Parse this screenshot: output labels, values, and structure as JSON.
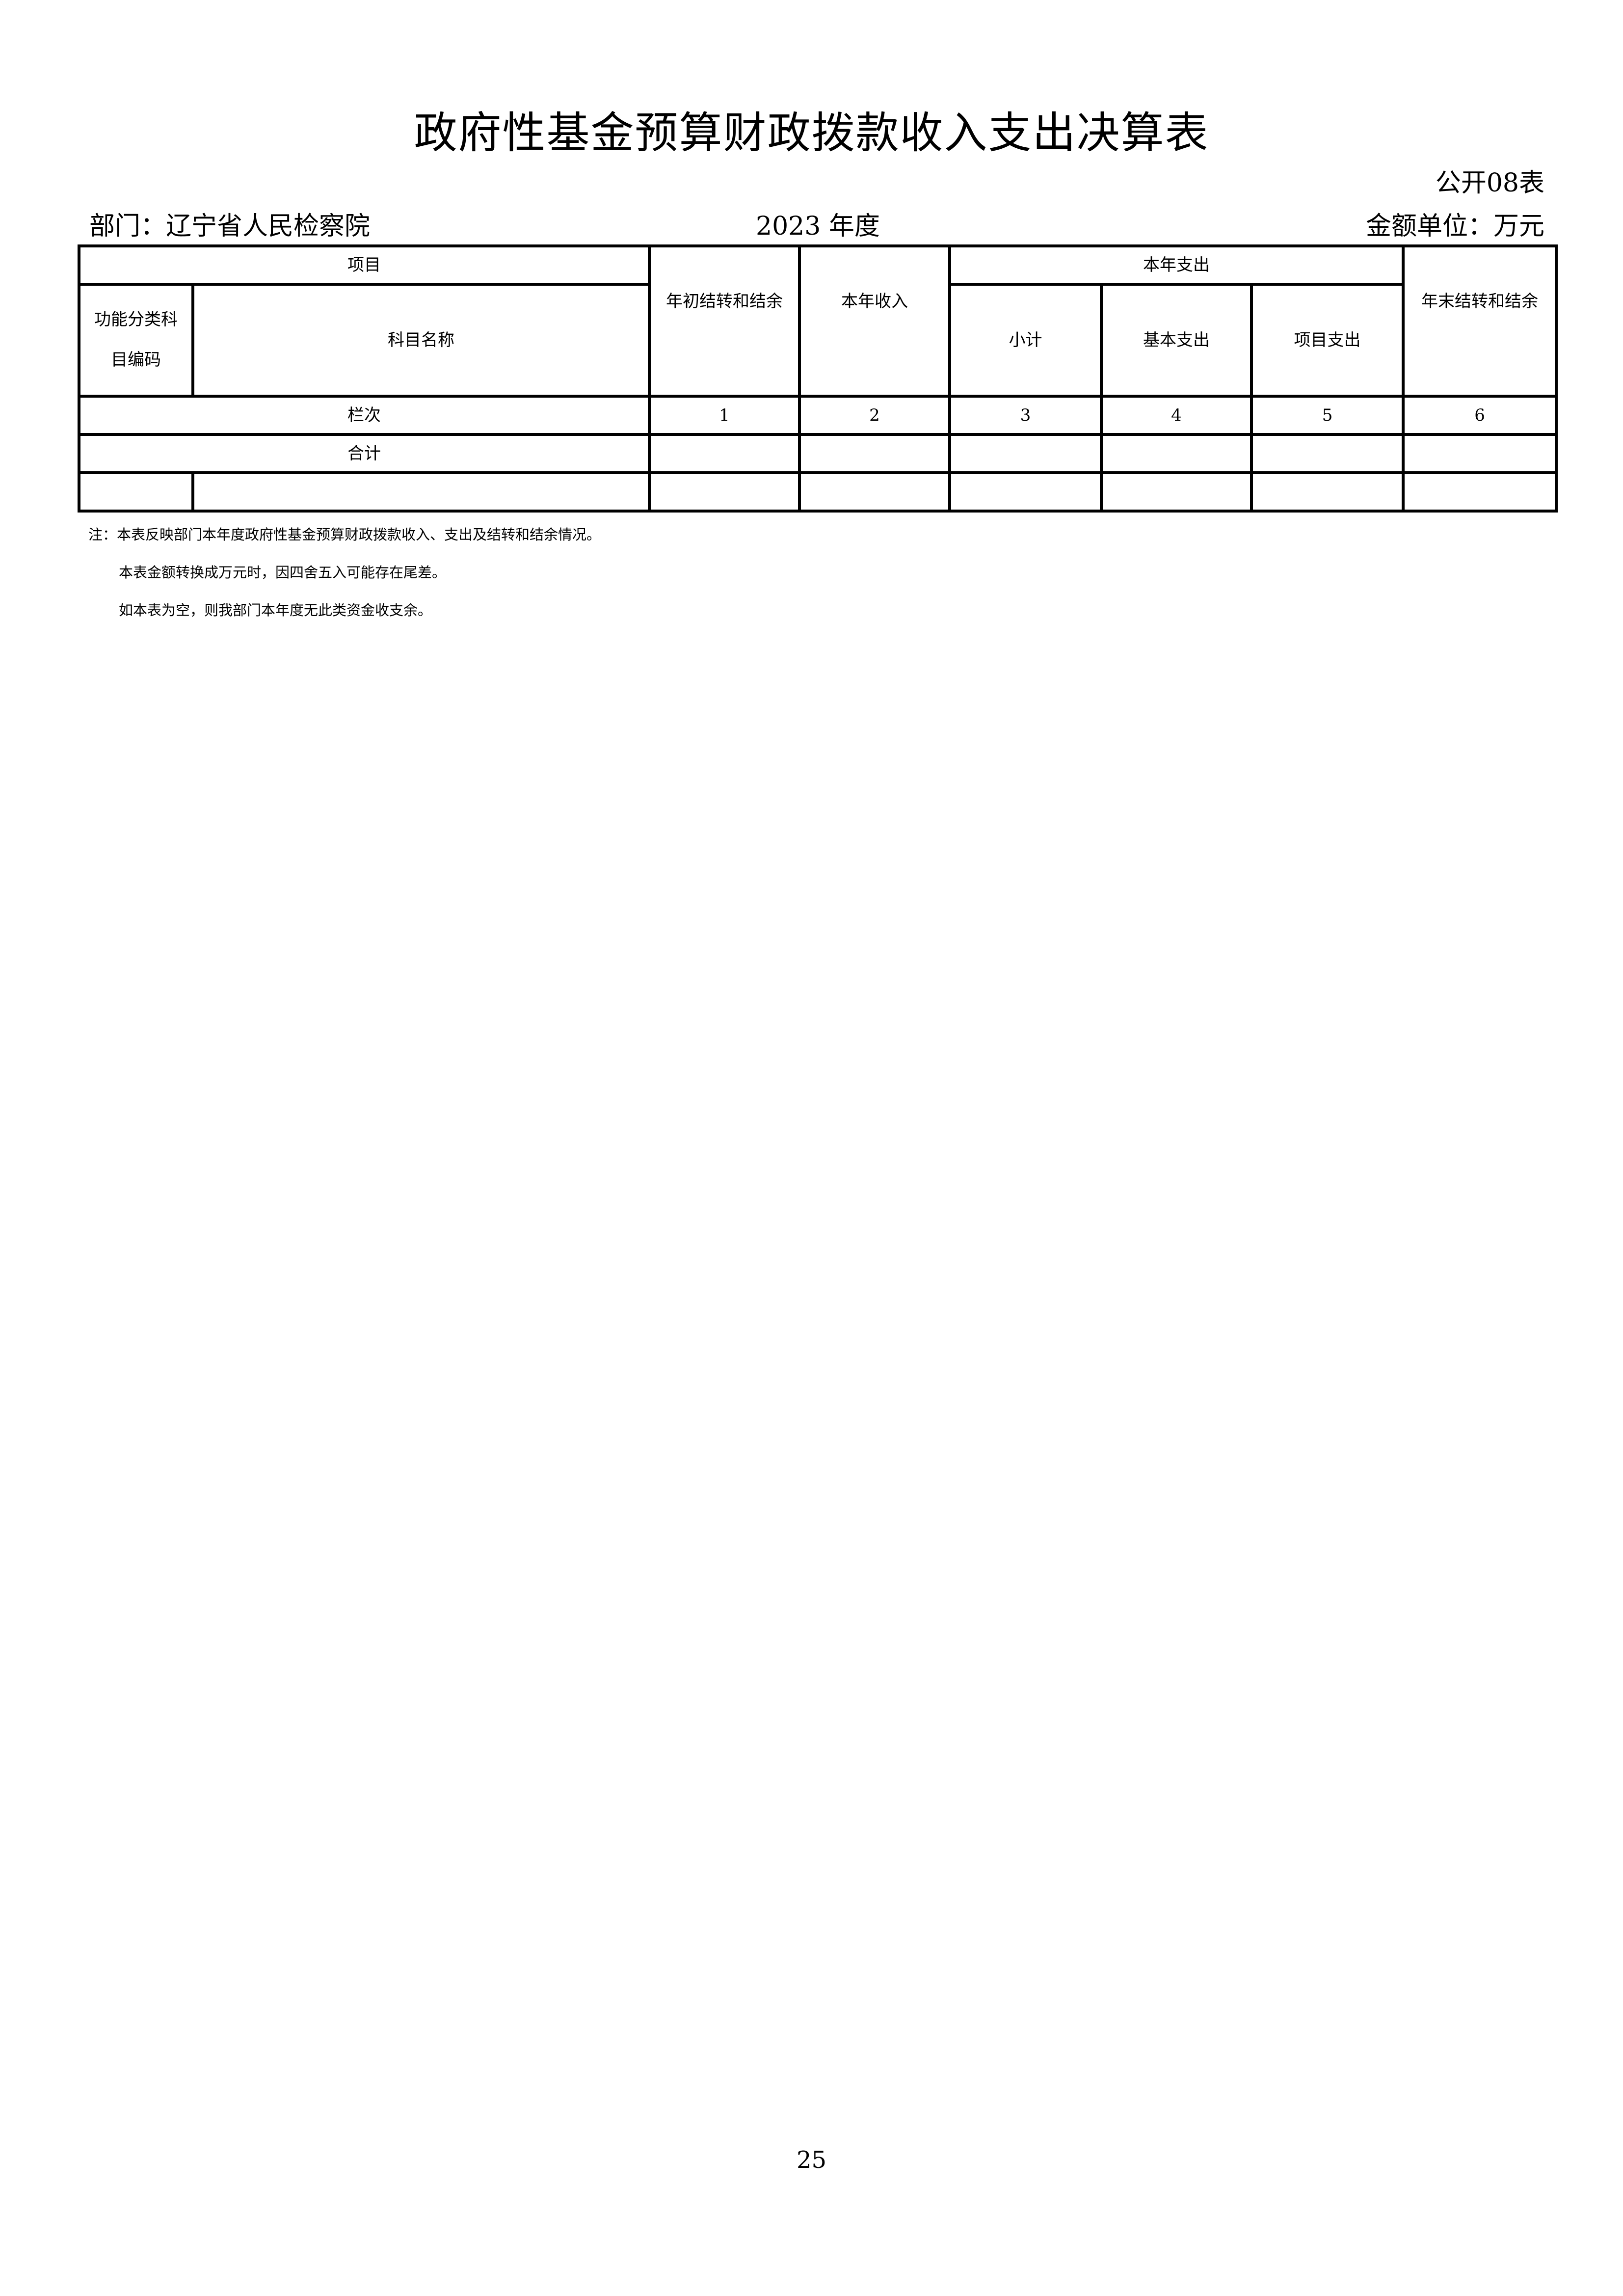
{
  "title": "政府性基金预算财政拨款收入支出决算表",
  "table_code": "公开08表",
  "department": "部门：辽宁省人民检察院",
  "year": "2023 年度",
  "unit": "金额单位：万元",
  "table": {
    "header_item": "项目",
    "header_code": "功能分类科目编码",
    "header_name": "科目名称",
    "header_begin_balance": "年初结转和结余",
    "header_income": "本年收入",
    "header_expense": "本年支出",
    "header_subtotal": "小计",
    "header_basic": "基本支出",
    "header_project": "项目支出",
    "header_end_balance": "年末结转和结余",
    "row_index_label": "栏次",
    "row_index": [
      "1",
      "2",
      "3",
      "4",
      "5",
      "6"
    ],
    "row_total_label": "合计"
  },
  "notes": [
    "注：本表反映部门本年度政府性基金预算财政拨款收入、支出及结转和结余情况。",
    "本表金额转换成万元时，因四舍五入可能存在尾差。",
    "如本表为空，则我部门本年度无此类资金收支余。"
  ],
  "page_number": "25"
}
